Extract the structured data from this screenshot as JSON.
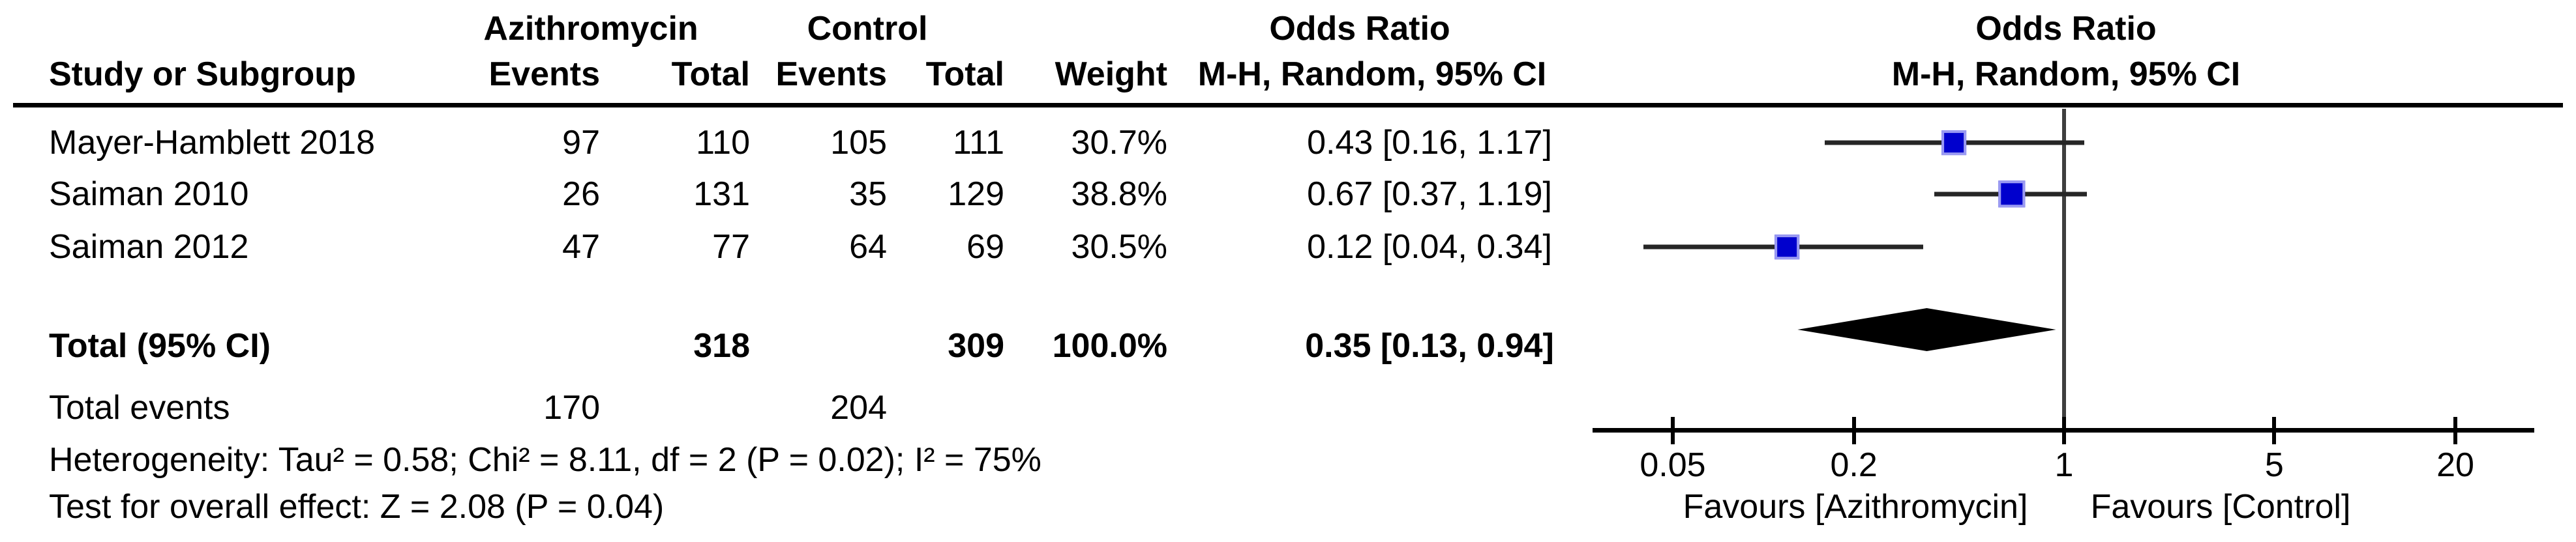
{
  "header": {
    "group1": "Azithromycin",
    "group2": "Control",
    "or_left": "Odds Ratio",
    "or_right": "Odds Ratio",
    "study": "Study or Subgroup",
    "events1": "Events",
    "total1": "Total",
    "events2": "Events",
    "total2": "Total",
    "weight": "Weight",
    "method_left": "M-H, Random, 95% CI",
    "method_right": "M-H, Random, 95% CI"
  },
  "table": {
    "rows": [
      {
        "study": "Mayer-Hamblett 2018",
        "events1": "97",
        "total1": "110",
        "events2": "105",
        "total2": "111",
        "weight": "30.7%",
        "ci_text": "0.43 [0.16, 1.17]"
      },
      {
        "study": "Saiman 2010",
        "events1": "26",
        "total1": "131",
        "events2": "35",
        "total2": "129",
        "weight": "38.8%",
        "ci_text": "0.67 [0.37, 1.19]"
      },
      {
        "study": "Saiman 2012",
        "events1": "47",
        "total1": "77",
        "events2": "64",
        "total2": "69",
        "weight": "30.5%",
        "ci_text": "0.12 [0.04, 0.34]"
      }
    ],
    "total_row": {
      "label": "Total (95% CI)",
      "total1": "318",
      "total2": "309",
      "weight": "100.0%",
      "ci_text": "0.35 [0.13, 0.94]"
    },
    "total_events_row": {
      "label": "Total events",
      "events1": "170",
      "events2": "204"
    },
    "heterogeneity": "Heterogeneity: Tau² = 0.58; Chi² = 8.11, df = 2 (P = 0.02); I² = 75%",
    "overall_effect": "Test for overall effect: Z = 2.08 (P = 0.04)"
  },
  "plot": {
    "ticks": [
      "0.05",
      "0.2",
      "1",
      "5",
      "20"
    ],
    "favours_left": "Favours [Azithromycin]",
    "favours_right": "Favours [Control]",
    "square_color": "#0000cd",
    "square_edge_color": "#9a9af2",
    "diamond_color": "#000000",
    "null_line_color": "#3f3f3f"
  },
  "chart_data": {
    "type": "scatter",
    "subtype": "forest_plot",
    "title": "Odds Ratio",
    "method": "M-H, Random, 95% CI",
    "x_scale": "log",
    "x_ticks": [
      0.05,
      0.2,
      1,
      5,
      20
    ],
    "xlim": [
      0.05,
      20
    ],
    "null_line": 1,
    "legend_position": "none",
    "studies": [
      {
        "name": "Mayer-Hamblett 2018",
        "or": 0.43,
        "ci_low": 0.16,
        "ci_high": 1.17,
        "weight_pct": 30.7
      },
      {
        "name": "Saiman 2010",
        "or": 0.67,
        "ci_low": 0.37,
        "ci_high": 1.19,
        "weight_pct": 38.8
      },
      {
        "name": "Saiman 2012",
        "or": 0.12,
        "ci_low": 0.04,
        "ci_high": 0.34,
        "weight_pct": 30.5
      }
    ],
    "total": {
      "name": "Total (95% CI)",
      "or": 0.35,
      "ci_low": 0.13,
      "ci_high": 0.94,
      "weight_pct": 100.0
    },
    "x_axis_labels": {
      "left": "Favours [Azithromycin]",
      "right": "Favours [Control]"
    }
  }
}
